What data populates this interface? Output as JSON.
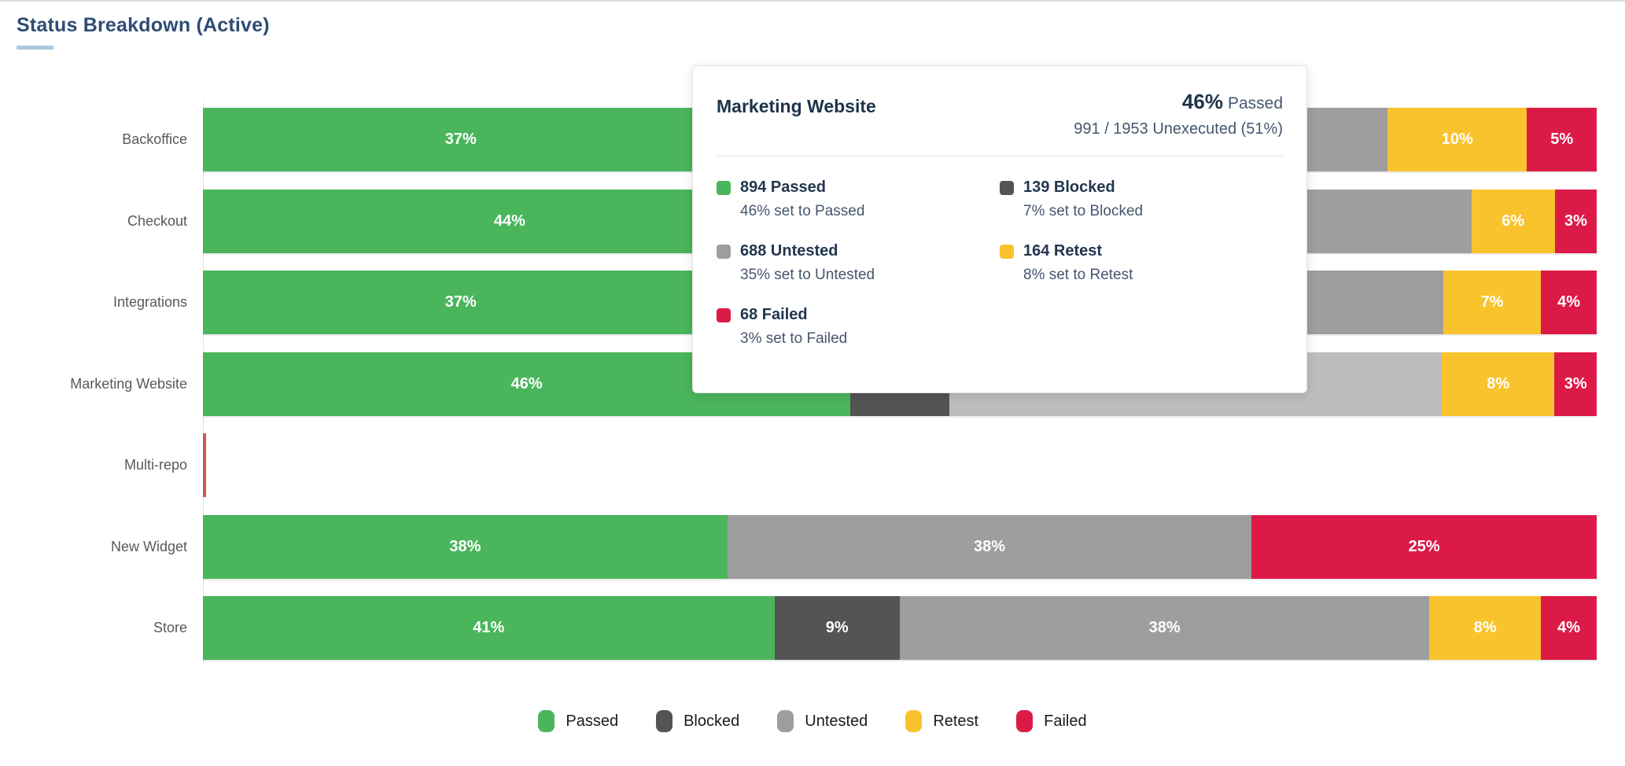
{
  "title": "Status Breakdown (Active)",
  "colors": {
    "passed": "#4ab55b",
    "blocked": "#545454",
    "untested": "#9e9e9e",
    "untested_highlight": "#bdbdbd",
    "retest": "#f9c32e",
    "failed": "#dc1a48",
    "empty_row_sliver": "#d0574c",
    "title_text": "#2e4c74",
    "title_accent": "#a9c7de",
    "axis_line": "#e3e3e3",
    "category_text": "#595959"
  },
  "chart_data": {
    "type": "bar",
    "orientation": "horizontal",
    "stacked": true,
    "unit": "percent",
    "title": "Status Breakdown (Active)",
    "grid": false,
    "legend_position": "bottom",
    "categories": [
      "Backoffice",
      "Checkout",
      "Integrations",
      "Marketing Website",
      "Multi-repo",
      "New Widget",
      "Store"
    ],
    "series": [
      {
        "name": "Passed",
        "color": "#4ab55b",
        "values": [
          37,
          44,
          37,
          46,
          0,
          38,
          41
        ]
      },
      {
        "name": "Blocked",
        "color": "#545454",
        "values": [
          8,
          7,
          7,
          7,
          0,
          0,
          9
        ]
      },
      {
        "name": "Untested",
        "color": "#9e9e9e",
        "values": [
          40,
          40,
          45,
          35,
          0,
          38,
          38
        ]
      },
      {
        "name": "Retest",
        "color": "#f9c32e",
        "values": [
          10,
          6,
          7,
          8,
          0,
          0,
          8
        ]
      },
      {
        "name": "Failed",
        "color": "#dc1a48",
        "values": [
          5,
          3,
          4,
          3,
          0,
          25,
          4
        ]
      }
    ],
    "segment_labels": [
      [
        "37%",
        "",
        "",
        "10%",
        "5%"
      ],
      [
        "44%",
        "",
        "",
        "6%",
        "3%"
      ],
      [
        "37%",
        "",
        "",
        "7%",
        "4%"
      ],
      [
        "46%",
        "",
        "",
        "8%",
        "3%"
      ],
      [
        "",
        "",
        "",
        "",
        ""
      ],
      [
        "38%",
        "",
        "38%",
        "",
        "25%"
      ],
      [
        "41%",
        "9%",
        "38%",
        "8%",
        "4%"
      ]
    ],
    "highlighted_category": "Marketing Website",
    "empty_category": "Multi-repo"
  },
  "tooltip": {
    "title": "Marketing Website",
    "headline_value": "46%",
    "headline_label": "Passed",
    "subline": "991 / 1953 Unexecuted (51%)",
    "stats": [
      {
        "count": "894",
        "status": "Passed",
        "label": "894 Passed",
        "detail": "46% set to Passed",
        "color": "#4ab55b"
      },
      {
        "count": "139",
        "status": "Blocked",
        "label": "139 Blocked",
        "detail": "7% set to Blocked",
        "color": "#545454"
      },
      {
        "count": "688",
        "status": "Untested",
        "label": "688 Untested",
        "detail": "35% set to Untested",
        "color": "#9e9e9e"
      },
      {
        "count": "164",
        "status": "Retest",
        "label": "164 Retest",
        "detail": "8% set to Retest",
        "color": "#f9c32e"
      },
      {
        "count": "68",
        "status": "Failed",
        "label": "68 Failed",
        "detail": "3% set to Failed",
        "color": "#dc1a48"
      }
    ]
  },
  "legend": {
    "items": [
      {
        "label": "Passed",
        "color": "#4ab55b"
      },
      {
        "label": "Blocked",
        "color": "#545454"
      },
      {
        "label": "Untested",
        "color": "#9e9e9e"
      },
      {
        "label": "Retest",
        "color": "#f9c32e"
      },
      {
        "label": "Failed",
        "color": "#dc1a48"
      }
    ]
  }
}
